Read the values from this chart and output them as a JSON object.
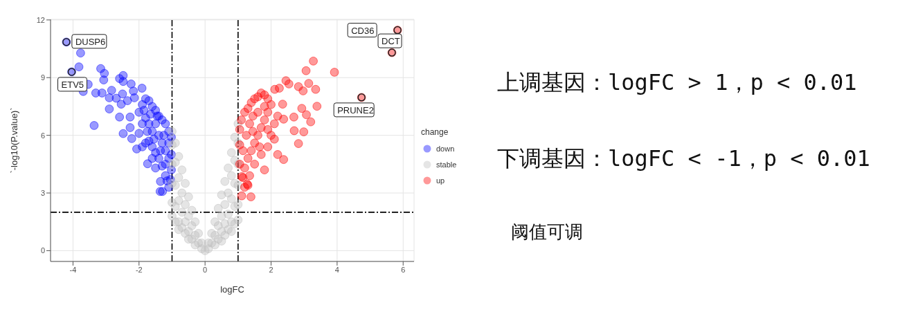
{
  "chart_data": {
    "type": "scatter",
    "xlabel": "logFC",
    "ylabel": "`-log10(P.value)`",
    "legend_title": "change",
    "legend": "right",
    "grid": true,
    "marker": "circle",
    "xlim": [
      -4.68,
      6.33
    ],
    "xticks": [
      -4,
      -2,
      0,
      2,
      4,
      6
    ],
    "ylim": [
      -0.56,
      12.03
    ],
    "yticks": [
      0,
      3,
      6,
      9,
      12
    ],
    "ref_lines": [
      {
        "axis": "x",
        "value": -1,
        "line_style": "dashed",
        "color": "#000000"
      },
      {
        "axis": "x",
        "value": 1,
        "line_style": "dashed",
        "color": "#000000"
      },
      {
        "axis": "y",
        "value": 2,
        "line_style": "dashed",
        "color": "#000000"
      }
    ],
    "annotations": [
      {
        "text": "DUSP6",
        "x": -4.2,
        "y": 10.85
      },
      {
        "text": "ETV5",
        "x": -4.04,
        "y": 9.3
      },
      {
        "text": "CD36",
        "x": 5.83,
        "y": 11.47
      },
      {
        "text": "DCT",
        "x": 5.66,
        "y": 10.3
      },
      {
        "text": "PRUNE2",
        "x": 4.74,
        "y": 7.97
      },
      "上调基因：logFC > 1，p < 0.01",
      "下调基因：logFC < -1，p < 0.01",
      "阈值可调"
    ],
    "series": [
      {
        "name": "down",
        "color": "#0000ff",
        "x": [
          -4.2,
          -3.77,
          -3.82,
          -4.04,
          -3.54,
          -3.69,
          -3.31,
          -3.12,
          -3.16,
          -3.05,
          -3.07,
          -3.36,
          -2.9,
          -2.9,
          -2.83,
          -2.69,
          -2.59,
          -2.48,
          -2.48,
          -2.5,
          -2.54,
          -2.59,
          -2.48,
          -2.27,
          -2.24,
          -2.17,
          -1.91,
          -2.14,
          -2.35,
          -2.27,
          -2.22,
          -2.07,
          -1.74,
          -1.36,
          -1.29,
          -1.15,
          -2.0,
          -1.9,
          -1.8,
          -1.7,
          -1.6,
          -1.5,
          -1.4,
          -1.3,
          -1.2,
          -1.1,
          -1.02,
          -1.02,
          -1.02,
          -1.05,
          -1.1,
          -1.2,
          -1.3,
          -1.4,
          -1.5,
          -1.6,
          -1.7,
          -1.8,
          -1.9,
          -2.0,
          -1.9,
          -1.8,
          -1.7,
          -1.6,
          -1.5,
          -1.4,
          -1.3,
          -1.2,
          -1.1,
          -1.5,
          -1.35,
          -1.2,
          -1.1,
          -1.25,
          -1.45,
          -1.65,
          -1.85,
          -1.75,
          -1.55,
          -1.35,
          -1.6
        ],
        "values": [
          10.85,
          10.28,
          9.56,
          9.3,
          8.65,
          8.28,
          8.2,
          8.2,
          9.47,
          9.22,
          8.88,
          6.51,
          7.95,
          7.37,
          8.34,
          7.93,
          8.95,
          9.11,
          8.8,
          8.15,
          7.62,
          6.95,
          6.09,
          6.95,
          8.67,
          8.3,
          8.45,
          7.95,
          7.8,
          6.4,
          5.83,
          5.29,
          4.52,
          3.08,
          3.08,
          3.63,
          7.2,
          7.6,
          7.9,
          7.8,
          7.5,
          7.3,
          7.0,
          6.8,
          6.6,
          6.2,
          5.9,
          5.0,
          4.2,
          3.7,
          3.3,
          3.9,
          4.4,
          4.8,
          5.1,
          5.4,
          5.7,
          5.6,
          5.4,
          6.1,
          6.6,
          6.9,
          6.6,
          6.2,
          6.6,
          6.0,
          5.6,
          5.2,
          4.8,
          4.3,
          3.6,
          4.5,
          5.6,
          6.0,
          7.0,
          7.1,
          7.3,
          6.2,
          5.8,
          5.2,
          4.8
        ]
      },
      {
        "name": "stable",
        "color": "#bebebe",
        "x": [
          -1,
          -1,
          -1,
          -1,
          -1,
          -1,
          -0.9,
          -0.9,
          -0.9,
          -0.9,
          -0.9,
          -0.8,
          -0.8,
          -0.8,
          -0.8,
          -0.8,
          -0.7,
          -0.7,
          -0.7,
          -0.7,
          -0.6,
          -0.6,
          -0.6,
          -0.6,
          -0.5,
          -0.5,
          -0.5,
          -0.5,
          -0.4,
          -0.4,
          -0.4,
          -0.3,
          -0.3,
          -0.3,
          -0.2,
          -0.2,
          -0.1,
          -0.1,
          0,
          0.1,
          0.1,
          0.2,
          0.2,
          0.3,
          0.3,
          0.3,
          0.4,
          0.4,
          0.4,
          0.5,
          0.5,
          0.5,
          0.5,
          0.6,
          0.6,
          0.6,
          0.6,
          0.7,
          0.7,
          0.7,
          0.7,
          0.8,
          0.8,
          0.8,
          0.8,
          0.8,
          0.9,
          0.9,
          0.9,
          0.9,
          0.9,
          1,
          1,
          1,
          1,
          1,
          1
        ],
        "values": [
          6.2,
          5.5,
          4.5,
          3.5,
          2.5,
          1.8,
          5.6,
          4.6,
          3.4,
          2.3,
          1.5,
          4.9,
          3.8,
          2.6,
          1.5,
          1.1,
          4.2,
          3.0,
          2.0,
          1.2,
          3.5,
          2.4,
          1.5,
          0.9,
          2.8,
          1.8,
          1.0,
          0.6,
          2.1,
          1.3,
          0.6,
          1.5,
          0.8,
          0.3,
          0.9,
          0.4,
          0.4,
          0.1,
          0,
          0.4,
          0.1,
          0.9,
          0.4,
          1.5,
          0.8,
          0.3,
          2.2,
          1.3,
          0.6,
          2.9,
          1.8,
          1.0,
          0.5,
          3.6,
          2.4,
          1.4,
          0.8,
          4.3,
          3.0,
          1.9,
          1.1,
          5.1,
          3.9,
          2.7,
          1.5,
          1.0,
          5.9,
          4.7,
          3.5,
          2.3,
          1.4,
          6.6,
          5.6,
          4.5,
          3.4,
          2.4,
          1.6
        ]
      },
      {
        "name": "up",
        "color": "#ff0000",
        "x": [
          5.83,
          5.66,
          4.74,
          3.92,
          3.28,
          3.06,
          3.39,
          3.14,
          3.35,
          2.97,
          2.83,
          2.45,
          2.54,
          3.2,
          2.99,
          2.83,
          2.38,
          2.7,
          2.93,
          3.07,
          2.69,
          2.38,
          2.35,
          2.11,
          2.25,
          1.39,
          1.11,
          1.28,
          1.11,
          1.05,
          1.05,
          1.05,
          1.1,
          1.2,
          1.3,
          1.4,
          1.5,
          1.6,
          1.7,
          1.8,
          1.9,
          2.0,
          1.9,
          1.8,
          1.7,
          1.6,
          1.5,
          1.4,
          1.3,
          1.2,
          1.15,
          1.2,
          1.35,
          1.5,
          1.7,
          1.9,
          2.0,
          2.1,
          2.2,
          1.25,
          1.35,
          1.45,
          1.6,
          1.8,
          1.15,
          1.45,
          1.65,
          1.9,
          2.1,
          1.3,
          2.2,
          1.8
        ],
        "values": [
          11.47,
          10.3,
          7.97,
          9.28,
          9.86,
          9.36,
          7.51,
          8.7,
          8.39,
          8.31,
          8.53,
          8.84,
          8.67,
          6.7,
          6.18,
          5.57,
          4.74,
          6.24,
          7.4,
          7.07,
          6.95,
          6.84,
          7.62,
          8.39,
          8.45,
          2.8,
          2.85,
          3.46,
          3.85,
          4.5,
          5.5,
          6.3,
          6.8,
          7.2,
          7.4,
          7.7,
          7.9,
          8.0,
          8.2,
          8.1,
          7.9,
          7.6,
          7.2,
          6.8,
          6.4,
          6.0,
          5.6,
          5.2,
          4.8,
          4.3,
          3.8,
          3.3,
          3.9,
          4.5,
          5.0,
          5.4,
          6.0,
          6.6,
          7.0,
          6.0,
          6.6,
          7.0,
          7.2,
          7.5,
          5.2,
          6.2,
          5.4,
          6.3,
          5.8,
          3.4,
          5.0,
          4.2
        ]
      }
    ]
  }
}
